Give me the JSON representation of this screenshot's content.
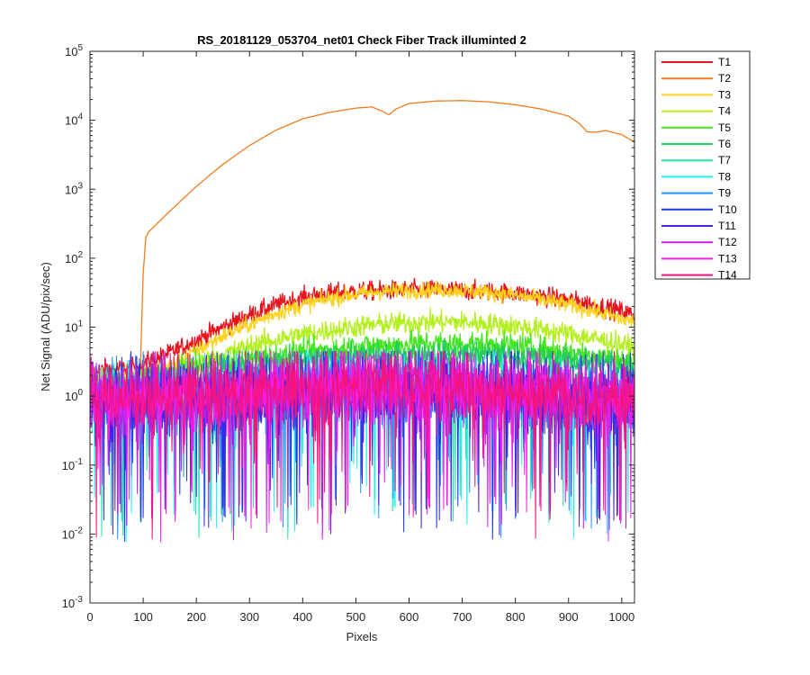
{
  "chart_data": {
    "type": "line",
    "title": "RS_20181129_053704_net01   Check Fiber     Track illuminted 2",
    "xlabel": "Pixels",
    "ylabel": "Net Signal (ADU/pix/sec)",
    "xlim": [
      0,
      1024
    ],
    "ylim": [
      0.001,
      100000
    ],
    "yscale": "log",
    "xticks": [
      0,
      100,
      200,
      300,
      400,
      500,
      600,
      700,
      800,
      900,
      1000
    ],
    "yticks": [
      {
        "value": 0.001,
        "base": "10",
        "exp": "-3"
      },
      {
        "value": 0.01,
        "base": "10",
        "exp": "-2"
      },
      {
        "value": 0.1,
        "base": "10",
        "exp": "-1"
      },
      {
        "value": 1,
        "base": "10",
        "exp": "0"
      },
      {
        "value": 10,
        "base": "10",
        "exp": "1"
      },
      {
        "value": 100,
        "base": "10",
        "exp": "2"
      },
      {
        "value": 1000,
        "base": "10",
        "exp": "3"
      },
      {
        "value": 10000,
        "base": "10",
        "exp": "4"
      },
      {
        "value": 100000,
        "base": "10",
        "exp": "5"
      }
    ],
    "grid": false,
    "legend_position": "outside-right",
    "series": [
      {
        "name": "T1",
        "color": "#e6141e",
        "kind": "signal",
        "x": [
          0,
          80,
          100,
          150,
          200,
          250,
          300,
          350,
          400,
          450,
          500,
          550,
          600,
          650,
          700,
          750,
          800,
          850,
          900,
          950,
          1000,
          1024
        ],
        "y": [
          2.3,
          2.6,
          3.0,
          4.2,
          6.5,
          10,
          15,
          21,
          27,
          31,
          33,
          34,
          34.5,
          35,
          34,
          33,
          31,
          28,
          25,
          21,
          17,
          15
        ],
        "noise": 0.07
      },
      {
        "name": "T2",
        "color": "#f07d1e",
        "kind": "signal",
        "x": [
          0,
          90,
          95,
          100,
          105,
          110,
          150,
          200,
          250,
          300,
          350,
          400,
          450,
          500,
          530,
          550,
          562,
          575,
          600,
          650,
          700,
          750,
          800,
          850,
          900,
          920,
          935,
          950,
          970,
          1000,
          1024
        ],
        "y": [
          1.2,
          1.5,
          3,
          60,
          200,
          240,
          480,
          1100,
          2300,
          4300,
          7200,
          10500,
          13000,
          15000,
          15600,
          13500,
          12000,
          14500,
          17500,
          19000,
          19300,
          18500,
          16800,
          14500,
          11500,
          9000,
          6800,
          6700,
          7100,
          6200,
          4800
        ],
        "noise": 0.0
      },
      {
        "name": "T3",
        "color": "#ffd21e",
        "kind": "signal",
        "x": [
          0,
          80,
          100,
          150,
          200,
          250,
          300,
          350,
          400,
          450,
          500,
          550,
          600,
          650,
          700,
          750,
          800,
          850,
          900,
          950,
          1000,
          1024
        ],
        "y": [
          1.9,
          2.0,
          2.2,
          2.8,
          4.5,
          7.5,
          11,
          16,
          21,
          26,
          30,
          33,
          34,
          35,
          34,
          32,
          29,
          25,
          21,
          17,
          13,
          12
        ],
        "noise": 0.06
      },
      {
        "name": "T4",
        "color": "#b4ef1e",
        "kind": "signal",
        "x": [
          0,
          100,
          150,
          200,
          250,
          300,
          350,
          400,
          450,
          500,
          550,
          600,
          650,
          700,
          750,
          800,
          850,
          900,
          950,
          1000,
          1024
        ],
        "y": [
          1.5,
          1.7,
          2.2,
          3.0,
          4.0,
          5.3,
          6.6,
          7.9,
          9.0,
          10.2,
          11.0,
          11.6,
          12.0,
          11.8,
          11.2,
          10.3,
          9.2,
          8.0,
          6.8,
          5.6,
          5.0
        ],
        "noise": 0.08
      },
      {
        "name": "T5",
        "color": "#46e61e",
        "kind": "signal",
        "x": [
          0,
          100,
          150,
          200,
          300,
          400,
          500,
          600,
          700,
          800,
          900,
          1000,
          1024
        ],
        "y": [
          1.3,
          1.6,
          2.1,
          2.6,
          3.4,
          4.3,
          5.2,
          5.8,
          5.9,
          5.3,
          4.4,
          3.4,
          3.1
        ],
        "noise": 0.09
      },
      {
        "name": "T6",
        "color": "#1ecd5a",
        "kind": "signal",
        "x": [
          0,
          100,
          200,
          300,
          400,
          500,
          600,
          700,
          800,
          900,
          1000,
          1024
        ],
        "y": [
          1.2,
          1.5,
          2.2,
          2.7,
          3.2,
          3.7,
          4.0,
          4.1,
          3.8,
          3.3,
          2.8,
          2.6
        ],
        "noise": 0.1
      },
      {
        "name": "T7",
        "color": "#1ee6aa",
        "kind": "noise",
        "mean": 1.0,
        "spread": 0.55,
        "dip": 0.004
      },
      {
        "name": "T8",
        "color": "#1ef5f5",
        "kind": "noise",
        "mean": 1.0,
        "spread": 0.55,
        "dip": 0.004
      },
      {
        "name": "T9",
        "color": "#1e96f5",
        "kind": "noise",
        "mean": 0.95,
        "spread": 0.6,
        "dip": 0.005
      },
      {
        "name": "T10",
        "color": "#1e37e6",
        "kind": "noise",
        "mean": 0.95,
        "spread": 0.6,
        "dip": 0.005
      },
      {
        "name": "T11",
        "color": "#4b1ee6",
        "kind": "noise",
        "mean": 0.95,
        "spread": 0.6,
        "dip": 0.005
      },
      {
        "name": "T12",
        "color": "#c81ef0",
        "kind": "noise",
        "mean": 0.95,
        "spread": 0.6,
        "dip": 0.005
      },
      {
        "name": "T13",
        "color": "#f51ee6",
        "kind": "noise",
        "mean": 1.0,
        "spread": 0.6,
        "dip": 0.006
      },
      {
        "name": "T14",
        "color": "#f5147d",
        "kind": "noise",
        "mean": 1.0,
        "spread": 0.6,
        "dip": 0.006
      }
    ]
  }
}
